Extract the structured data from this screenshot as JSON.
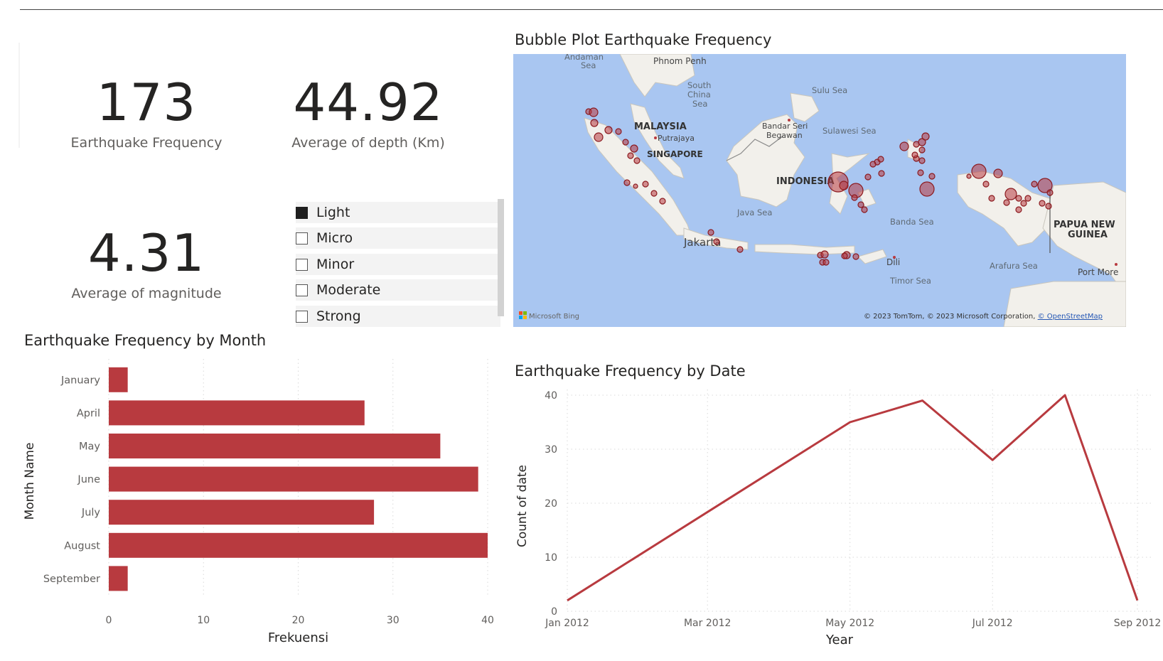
{
  "kpis": {
    "frequency": {
      "value": "173",
      "label": "Earthquake Frequency"
    },
    "depth": {
      "value": "44.92",
      "label": "Average of depth (Km)"
    },
    "magnitude": {
      "value": "4.31",
      "label": "Average of magnitude"
    }
  },
  "slicer": {
    "items": [
      {
        "label": "Light",
        "checked": true
      },
      {
        "label": "Micro",
        "checked": false
      },
      {
        "label": "Minor",
        "checked": false
      },
      {
        "label": "Moderate",
        "checked": false
      },
      {
        "label": "Strong",
        "checked": false
      }
    ]
  },
  "map": {
    "title": "Bubble Plot Earthquake Frequency",
    "attribution": "© 2023 TomTom, © 2023 Microsoft Corporation, ",
    "attribution_link": "© OpenStreetMap",
    "provider": "Microsoft Bing",
    "bubble_color": "#b83a3f",
    "labels": {
      "andaman": [
        "Andaman",
        "Sea"
      ],
      "phnom_penh": "Phnom Penh",
      "south_china_sea": [
        "South",
        "China",
        "Sea"
      ],
      "sulu_sea": "Sulu Sea",
      "malaysia": "MALAYSIA",
      "putrajaya": "Putrajaya",
      "singapore": "SINGAPORE",
      "bandar": [
        "Bandar Seri",
        "Begawan"
      ],
      "sulawesi_sea": "Sulawesi Sea",
      "indonesia": "INDONESIA",
      "java_sea": "Java Sea",
      "jakarta": "Jakarta",
      "banda_sea": "Banda Sea",
      "png": [
        "PAPUA NEW",
        "GUINEA"
      ],
      "dili": "Dili",
      "timor_sea": "Timor Sea",
      "arafura_sea": "Arafura Sea",
      "port_moresby": "Port More"
    }
  },
  "month_chart": {
    "title": "Earthquake Frequency by Month",
    "bar_color": "#b83a3f"
  },
  "date_chart": {
    "title": "Earthquake Frequency by Date",
    "line_color": "#b83a3f"
  },
  "chart_data": [
    {
      "type": "bar",
      "orientation": "horizontal",
      "title": "Earthquake Frequency by Month",
      "categories": [
        "January",
        "April",
        "May",
        "June",
        "July",
        "August",
        "September"
      ],
      "values": [
        2,
        27,
        35,
        39,
        28,
        40,
        2
      ],
      "xlabel": "Frekuensi",
      "ylabel": "Month Name",
      "xlim": [
        0,
        40
      ],
      "xticks": [
        "0",
        "10",
        "20",
        "30",
        "40"
      ],
      "grid": true
    },
    {
      "type": "line",
      "title": "Earthquake Frequency by Date",
      "x": [
        "2012-01",
        "2012-05",
        "2012-06",
        "2012-07",
        "2012-08",
        "2012-09"
      ],
      "y": [
        2,
        35,
        39,
        28,
        40,
        2
      ],
      "xlabel": "Year",
      "ylabel": "Count of date",
      "ylim": [
        0,
        40
      ],
      "yticks": [
        "0",
        "10",
        "20",
        "30",
        "40"
      ],
      "xticks": [
        "Jan 2012",
        "Mar 2012",
        "May 2012",
        "Jul 2012",
        "Sep 2012"
      ],
      "grid": true
    }
  ]
}
